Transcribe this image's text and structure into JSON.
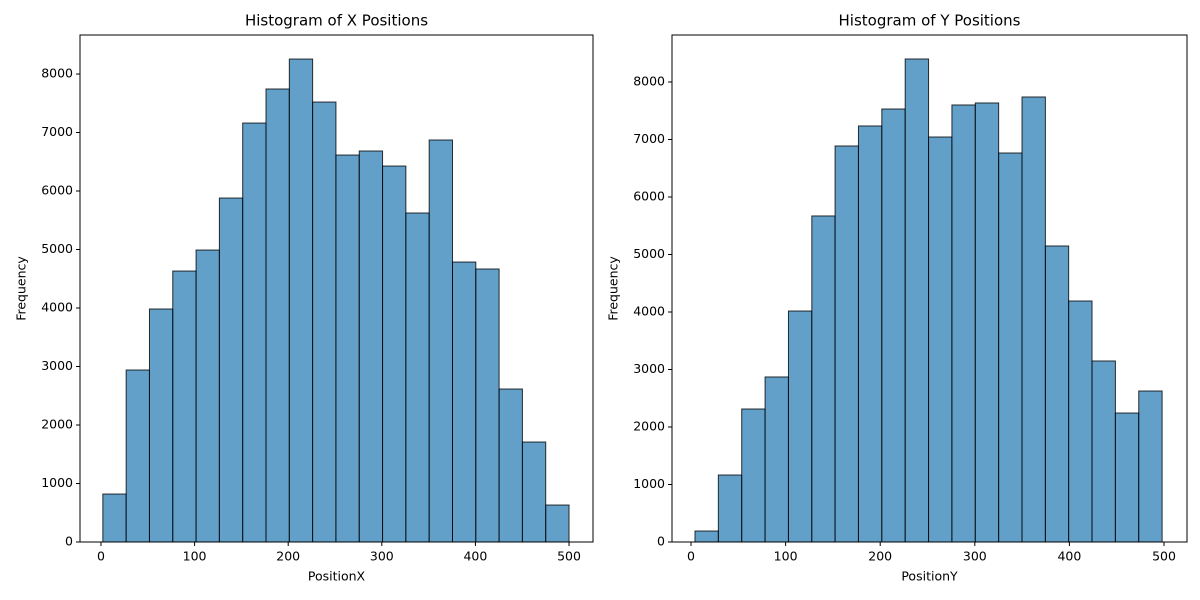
{
  "chart_data": [
    {
      "type": "histogram",
      "title": "Histogram of X Positions",
      "xlabel": "PositionX",
      "ylabel": "Frequency",
      "bins": [
        2,
        26.9,
        51.8,
        76.7,
        101.6,
        126.5,
        151.4,
        176.3,
        201.2,
        226.1,
        251,
        275.9,
        300.8,
        325.7,
        350.6,
        375.5,
        400.4,
        425.3,
        450.2,
        475.1,
        500
      ],
      "counts": [
        820,
        2940,
        3983,
        4632,
        4991,
        5880,
        7162,
        7744,
        8256,
        7521,
        6615,
        6684,
        6427,
        5624,
        6872,
        4786,
        4667,
        2615,
        1709,
        632
      ],
      "color": "#1f77b4",
      "alpha": 0.7,
      "edgecolor": "#000000",
      "xlim": [
        -22.4,
        525.6
      ],
      "xticks": [
        0,
        100,
        200,
        300,
        400,
        500
      ],
      "ylim": [
        0,
        8667
      ],
      "yticks": [
        0,
        1000,
        2000,
        3000,
        4000,
        5000,
        6000,
        7000,
        8000
      ]
    },
    {
      "type": "histogram",
      "title": "Histogram of Y Positions",
      "xlabel": "PositionY",
      "ylabel": "Frequency",
      "bins": [
        4.2,
        28.9,
        53.6,
        78.3,
        103,
        127.7,
        152.3,
        177,
        201.7,
        226.4,
        251.1,
        275.8,
        300.5,
        325.2,
        349.9,
        374.6,
        399.2,
        423.9,
        448.6,
        473.3,
        498
      ],
      "counts": [
        191,
        1165,
        2313,
        2870,
        4017,
        5670,
        6887,
        7235,
        7530,
        8400,
        7043,
        7600,
        7635,
        6765,
        7739,
        5148,
        4191,
        3148,
        2243,
        2626
      ],
      "color": "#1f77b4",
      "alpha": 0.7,
      "edgecolor": "#000000",
      "xlim": [
        -20.1,
        524.3
      ],
      "xticks": [
        0,
        100,
        200,
        300,
        400,
        500
      ],
      "ylim": [
        0,
        8817
      ],
      "yticks": [
        0,
        1000,
        2000,
        3000,
        4000,
        5000,
        6000,
        7000,
        8000
      ]
    }
  ]
}
